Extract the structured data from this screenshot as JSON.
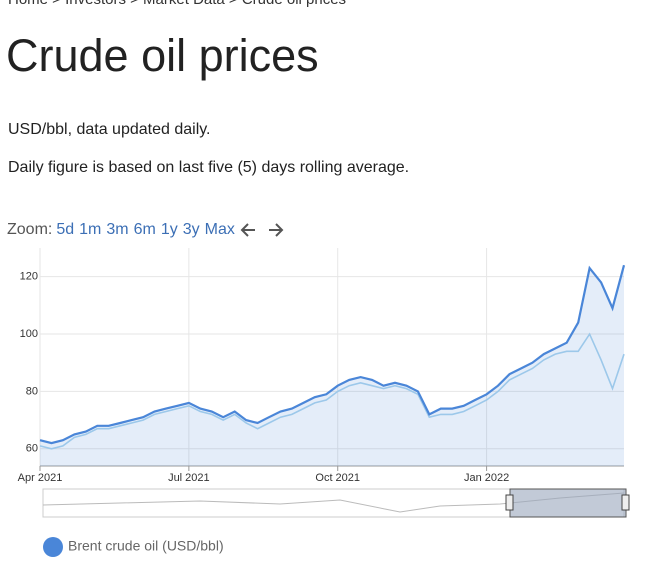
{
  "breadcrumb": "Home > Investors > Market Data > Crude oil prices",
  "header": {
    "title": "Crude oil prices"
  },
  "intro": [
    "USD/bbl, data updated daily.",
    "Daily figure is based on last five (5) days rolling average."
  ],
  "zoom": {
    "label": "Zoom:",
    "options": [
      "5d",
      "1m",
      "3m",
      "6m",
      "1y",
      "3y",
      "Max"
    ]
  },
  "chart_data": {
    "type": "line",
    "categories": [
      "Apr 2021",
      null,
      null,
      null,
      null,
      null,
      null,
      null,
      null,
      null,
      null,
      null,
      null,
      "Jul 2021",
      null,
      null,
      null,
      null,
      null,
      null,
      null,
      null,
      null,
      null,
      null,
      null,
      "Oct 2021",
      null,
      null,
      null,
      null,
      null,
      null,
      null,
      null,
      null,
      null,
      null,
      null,
      "Jan 2022",
      null,
      null,
      null,
      null,
      null,
      null,
      null,
      null,
      null,
      null,
      null,
      null
    ],
    "series": [
      {
        "name": "Brent crude oil (USD/bbl)",
        "color": "#4a86d8",
        "values": [
          63,
          62,
          63,
          65,
          66,
          68,
          68,
          69,
          70,
          71,
          73,
          74,
          75,
          76,
          74,
          73,
          71,
          73,
          70,
          69,
          71,
          73,
          74,
          76,
          78,
          79,
          82,
          84,
          85,
          84,
          82,
          83,
          82,
          80,
          72,
          74,
          74,
          75,
          77,
          79,
          82,
          86,
          88,
          90,
          93,
          95,
          97,
          104,
          123,
          118,
          109,
          124
        ]
      },
      {
        "color": "#9cc8ea",
        "values": [
          61,
          60,
          61,
          64,
          65,
          67,
          67,
          68,
          69,
          70,
          72,
          73,
          74,
          75,
          73,
          72,
          70,
          72,
          69,
          67,
          69,
          71,
          72,
          74,
          76,
          77,
          80,
          82,
          83,
          82,
          81,
          82,
          81,
          79,
          71,
          72,
          72,
          73,
          75,
          77,
          80,
          84,
          86,
          88,
          91,
          93,
          94,
          94,
          100,
          91,
          81,
          93
        ]
      }
    ],
    "ylim": [
      54,
      130
    ],
    "yticks": [
      60,
      80,
      100,
      120
    ],
    "grid": true,
    "legend": "bottom-left"
  }
}
